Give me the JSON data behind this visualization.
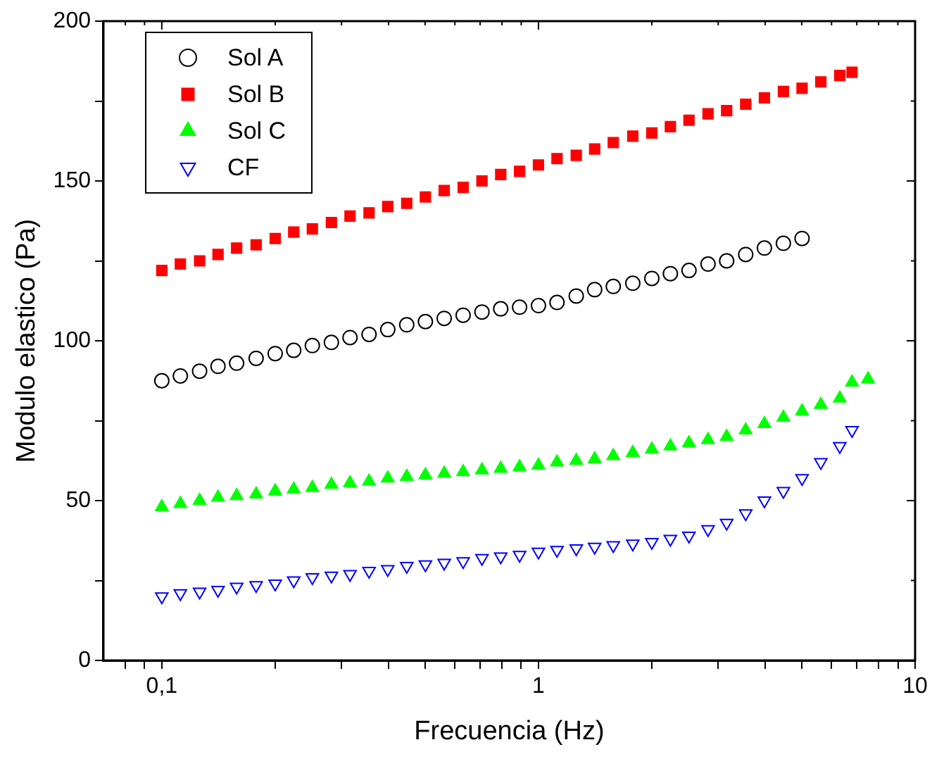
{
  "chart_data": {
    "type": "scatter",
    "xlabel": "Frecuencia (Hz)",
    "ylabel": "Modulo elastico (Pa)",
    "log": "x",
    "legend": "top left",
    "xlim": [
      0.07,
      10
    ],
    "ylim": [
      0,
      200
    ],
    "xticks": [
      {
        "value": 0.08,
        "label": null
      },
      {
        "value": 0.09,
        "label": null
      },
      {
        "value": 0.1,
        "label": "0,1"
      },
      {
        "value": 0.2,
        "label": null
      },
      {
        "value": 0.3,
        "label": null
      },
      {
        "value": 0.4,
        "label": null
      },
      {
        "value": 0.5,
        "label": null
      },
      {
        "value": 0.6,
        "label": null
      },
      {
        "value": 0.7,
        "label": null
      },
      {
        "value": 0.8,
        "label": null
      },
      {
        "value": 0.9,
        "label": null
      },
      1,
      {
        "value": 2,
        "label": null
      },
      {
        "value": 3,
        "label": null
      },
      {
        "value": 4,
        "label": null
      },
      {
        "value": 5,
        "label": null
      },
      {
        "value": 6,
        "label": null
      },
      {
        "value": 7,
        "label": null
      },
      {
        "value": 8,
        "label": null
      },
      {
        "value": 9,
        "label": null
      },
      10
    ],
    "yticks": [
      0,
      {
        "value": 25,
        "label": null
      },
      50,
      {
        "value": 75,
        "label": null
      },
      100,
      {
        "value": 125,
        "label": null
      },
      150,
      {
        "value": 175,
        "label": null
      },
      200
    ],
    "series": [
      {
        "name": "Sol A",
        "color": "#000000",
        "marker": "circle",
        "x": [
          0.1,
          0.112,
          0.126,
          0.141,
          0.158,
          0.178,
          0.2,
          0.224,
          0.251,
          0.282,
          0.316,
          0.355,
          0.398,
          0.447,
          0.501,
          0.562,
          0.631,
          0.708,
          0.794,
          0.891,
          1,
          1.12,
          1.26,
          1.41,
          1.58,
          1.78,
          2,
          2.24,
          2.51,
          2.82,
          3.16,
          3.55,
          3.98,
          4.47,
          5.01
        ],
        "values": [
          87.5,
          89,
          90.5,
          92,
          93,
          94.5,
          96,
          97,
          98.5,
          99.5,
          101,
          102,
          103.5,
          105,
          106,
          107,
          108,
          109,
          110,
          110.5,
          111,
          112,
          114,
          116,
          117,
          118,
          119.5,
          121,
          122,
          124,
          125,
          127,
          129,
          130.5,
          132
        ]
      },
      {
        "name": "Sol B",
        "color": "#ff0000",
        "marker": "square",
        "x": [
          0.1,
          0.112,
          0.126,
          0.141,
          0.158,
          0.178,
          0.2,
          0.224,
          0.251,
          0.282,
          0.316,
          0.355,
          0.398,
          0.447,
          0.501,
          0.562,
          0.631,
          0.708,
          0.794,
          0.891,
          1,
          1.12,
          1.26,
          1.41,
          1.58,
          1.78,
          2,
          2.24,
          2.51,
          2.82,
          3.16,
          3.55,
          3.98,
          4.47,
          5.01,
          5.62,
          6.31,
          6.8
        ],
        "values": [
          122,
          124,
          125,
          127,
          129,
          130,
          132,
          134,
          135,
          137,
          139,
          140,
          142,
          143,
          145,
          147,
          148,
          150,
          152,
          153,
          155,
          157,
          158,
          160,
          162,
          164,
          165,
          167,
          169,
          171,
          172,
          174,
          176,
          178,
          179,
          181,
          183,
          184
        ]
      },
      {
        "name": "Sol C",
        "color": "#00ff00",
        "marker": "triangle",
        "x": [
          0.1,
          0.112,
          0.126,
          0.141,
          0.158,
          0.178,
          0.2,
          0.224,
          0.251,
          0.282,
          0.316,
          0.355,
          0.398,
          0.447,
          0.501,
          0.562,
          0.631,
          0.708,
          0.794,
          0.891,
          1,
          1.12,
          1.26,
          1.41,
          1.58,
          1.78,
          2,
          2.24,
          2.51,
          2.82,
          3.16,
          3.55,
          3.98,
          4.47,
          5.01,
          5.62,
          6.31,
          6.8,
          7.5
        ],
        "values": [
          48,
          49,
          50,
          51,
          51.5,
          52,
          53,
          53.5,
          54,
          55,
          55.5,
          56,
          57,
          57.5,
          58,
          58.5,
          59,
          59.5,
          60,
          60.5,
          61,
          62,
          62.5,
          63,
          64,
          65,
          66,
          67,
          68,
          69,
          70,
          72,
          74,
          76,
          78,
          80,
          82,
          87,
          88
        ]
      },
      {
        "name": "CF",
        "color": "#0000ff",
        "marker": "triangle-down",
        "x": [
          0.1,
          0.112,
          0.126,
          0.141,
          0.158,
          0.178,
          0.2,
          0.224,
          0.251,
          0.282,
          0.316,
          0.355,
          0.398,
          0.447,
          0.501,
          0.562,
          0.631,
          0.708,
          0.794,
          0.891,
          1,
          1.12,
          1.26,
          1.41,
          1.58,
          1.78,
          2,
          2.24,
          2.51,
          2.82,
          3.16,
          3.55,
          3.98,
          4.47,
          5.01,
          5.62,
          6.31,
          6.8
        ],
        "values": [
          20,
          21,
          21.5,
          22,
          23,
          23.5,
          24,
          25,
          26,
          26.5,
          27,
          28,
          28.5,
          29.5,
          30,
          30.5,
          31,
          32,
          32.5,
          33,
          34,
          34.5,
          35,
          35.5,
          36,
          36.5,
          37,
          38,
          39,
          41,
          43,
          46,
          50,
          53,
          57,
          62,
          67,
          72
        ]
      }
    ]
  }
}
